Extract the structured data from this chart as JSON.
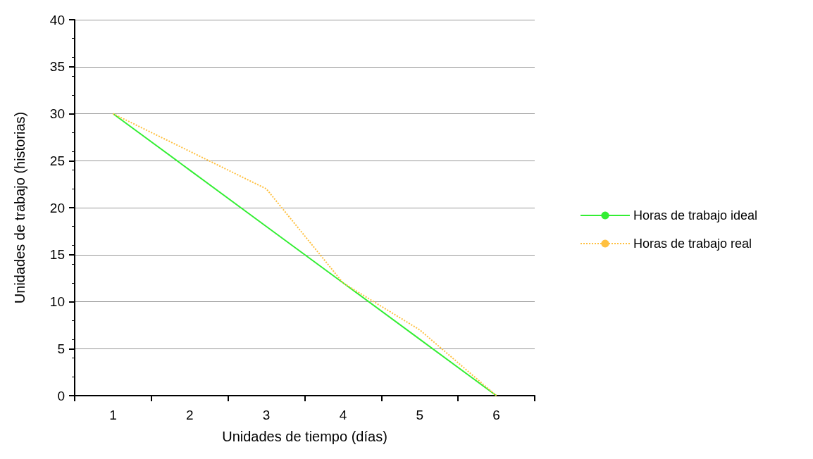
{
  "chart_data": {
    "type": "line",
    "xlabel": "Unidades de tiempo (días)",
    "ylabel": "Unidades de trabajo (historias)",
    "categories": [
      "1",
      "2",
      "3",
      "4",
      "5",
      "6"
    ],
    "series": [
      {
        "name": "Horas de trabajo ideal",
        "color": "#33ee33",
        "line_style": "solid",
        "values": [
          30,
          24,
          18,
          12,
          6,
          0
        ]
      },
      {
        "name": "Horas de trabajo real",
        "color": "#ffc040",
        "line_style": "dotted",
        "values": [
          30,
          26,
          22,
          12,
          7,
          0
        ]
      }
    ],
    "ylim": [
      0,
      40
    ],
    "yticks": [
      0,
      5,
      10,
      15,
      20,
      25,
      30,
      35,
      40
    ],
    "grid": "y",
    "legend": "right",
    "marker": "none"
  }
}
